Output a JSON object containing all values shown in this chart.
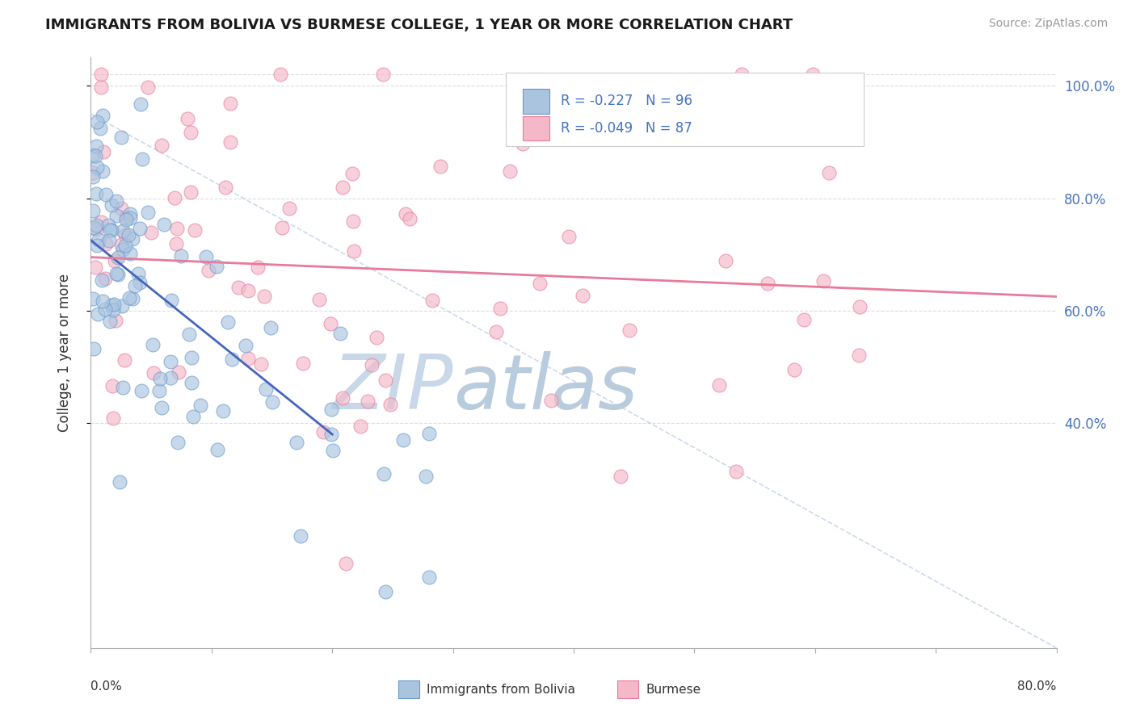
{
  "title": "IMMIGRANTS FROM BOLIVIA VS BURMESE COLLEGE, 1 YEAR OR MORE CORRELATION CHART",
  "source_text": "Source: ZipAtlas.com",
  "ylabel": "College, 1 year or more",
  "ylabel_right_ticks": [
    "40.0%",
    "60.0%",
    "80.0%",
    "100.0%"
  ],
  "ylabel_right_values": [
    0.4,
    0.6,
    0.8,
    1.0
  ],
  "legend_r1": "-0.227",
  "legend_n1": "96",
  "legend_r2": "-0.049",
  "legend_n2": "87",
  "legend_label1": "Immigrants from Bolivia",
  "legend_label2": "Burmese",
  "color_blue_fill": "#aac4e0",
  "color_blue_edge": "#6699cc",
  "color_pink_fill": "#f4b8c8",
  "color_pink_edge": "#e87a9a",
  "color_blue_line": "#4466bb",
  "color_pink_line": "#e87a9a",
  "color_text_blue": "#4472c4",
  "color_dashed_line": "#c0d0e8",
  "watermark_zip": "#c8d8e8",
  "watermark_atlas": "#b8ccdd",
  "background_color": "#ffffff",
  "grid_color": "#dddddd",
  "xmin": 0.0,
  "xmax": 0.8,
  "ymin": 0.0,
  "ymax": 1.05,
  "bolivia_seed": 12345,
  "burmese_seed": 67890
}
